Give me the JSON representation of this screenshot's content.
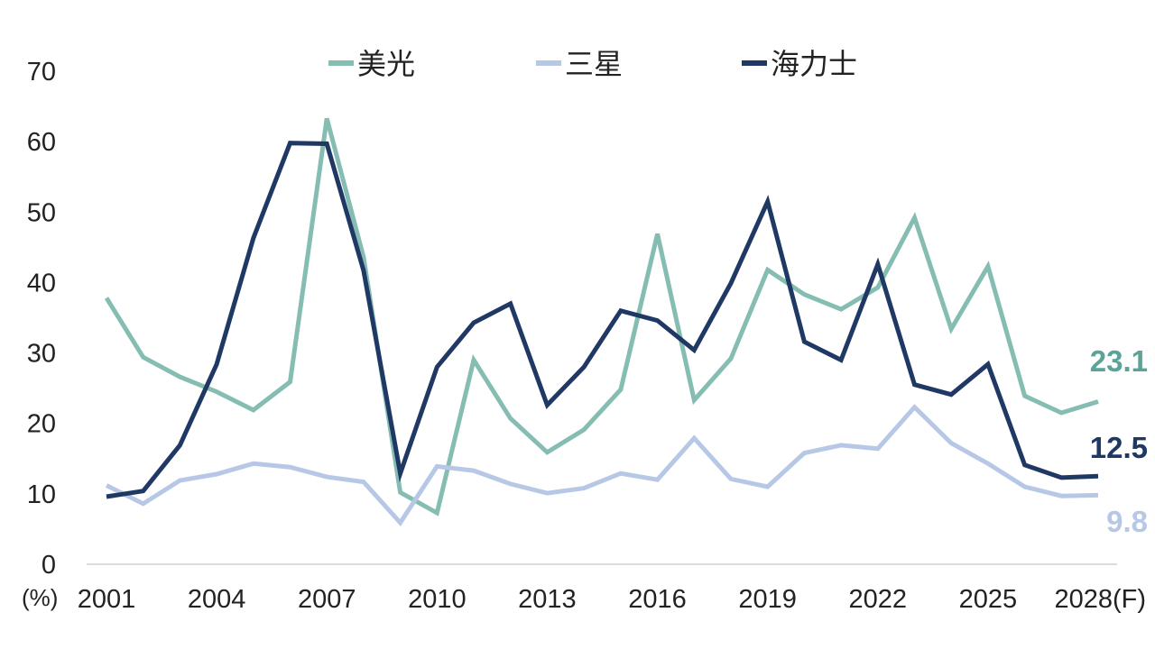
{
  "chart_data": {
    "type": "line",
    "title": "",
    "y_unit_label": "(%)",
    "ylim": [
      0,
      70
    ],
    "y_ticks": [
      "0",
      "10",
      "20",
      "30",
      "40",
      "50",
      "60",
      "70"
    ],
    "x": [
      2001,
      2002,
      2003,
      2004,
      2005,
      2006,
      2007,
      2008,
      2009,
      2010,
      2011,
      2012,
      2013,
      2014,
      2015,
      2016,
      2017,
      2018,
      2019,
      2020,
      2021,
      2022,
      2023,
      2024,
      2025,
      2026,
      2027,
      2028
    ],
    "x_tick_labels": [
      {
        "x": 2001,
        "label": "2001"
      },
      {
        "x": 2004,
        "label": "2004"
      },
      {
        "x": 2007,
        "label": "2007"
      },
      {
        "x": 2010,
        "label": "2010"
      },
      {
        "x": 2013,
        "label": "2013"
      },
      {
        "x": 2016,
        "label": "2016"
      },
      {
        "x": 2019,
        "label": "2019"
      },
      {
        "x": 2022,
        "label": "2022"
      },
      {
        "x": 2025,
        "label": "2025"
      },
      {
        "x": 2028,
        "label": "2028(F)"
      }
    ],
    "legend_position": "top",
    "grid": false,
    "series": [
      {
        "name": "美光",
        "color": "#86bdb3",
        "label_color": "#5aa396",
        "end_label": "23.1",
        "values": [
          37.8,
          29.4,
          26.6,
          24.5,
          21.9,
          25.9,
          63.3,
          43.6,
          10.2,
          7.3,
          29.0,
          20.7,
          15.9,
          19.1,
          24.8,
          46.9,
          23.3,
          29.2,
          41.8,
          38.3,
          36.2,
          39.3,
          49.2,
          33.4,
          42.3,
          23.9,
          21.5,
          23.1
        ]
      },
      {
        "name": "三星",
        "color": "#b7c8e6",
        "label_color": "#b7c8e6",
        "end_label": "9.8",
        "values": [
          11.2,
          8.6,
          11.9,
          12.8,
          14.3,
          13.8,
          12.4,
          11.7,
          5.9,
          13.9,
          13.3,
          11.4,
          10.1,
          10.8,
          12.9,
          12.0,
          17.9,
          12.1,
          11.0,
          15.8,
          16.9,
          16.4,
          22.3,
          17.2,
          14.3,
          11.0,
          9.7,
          9.8
        ]
      },
      {
        "name": "海力士",
        "color": "#1f3864",
        "label_color": "#1f3864",
        "end_label": "12.5",
        "values": [
          9.6,
          10.4,
          16.9,
          28.4,
          46.3,
          59.8,
          59.7,
          41.7,
          12.9,
          28.0,
          34.3,
          37.0,
          22.6,
          28.0,
          36.0,
          34.6,
          30.4,
          39.9,
          51.5,
          31.6,
          29.0,
          42.6,
          25.5,
          24.1,
          28.4,
          14.1,
          12.3,
          12.5
        ]
      }
    ]
  }
}
